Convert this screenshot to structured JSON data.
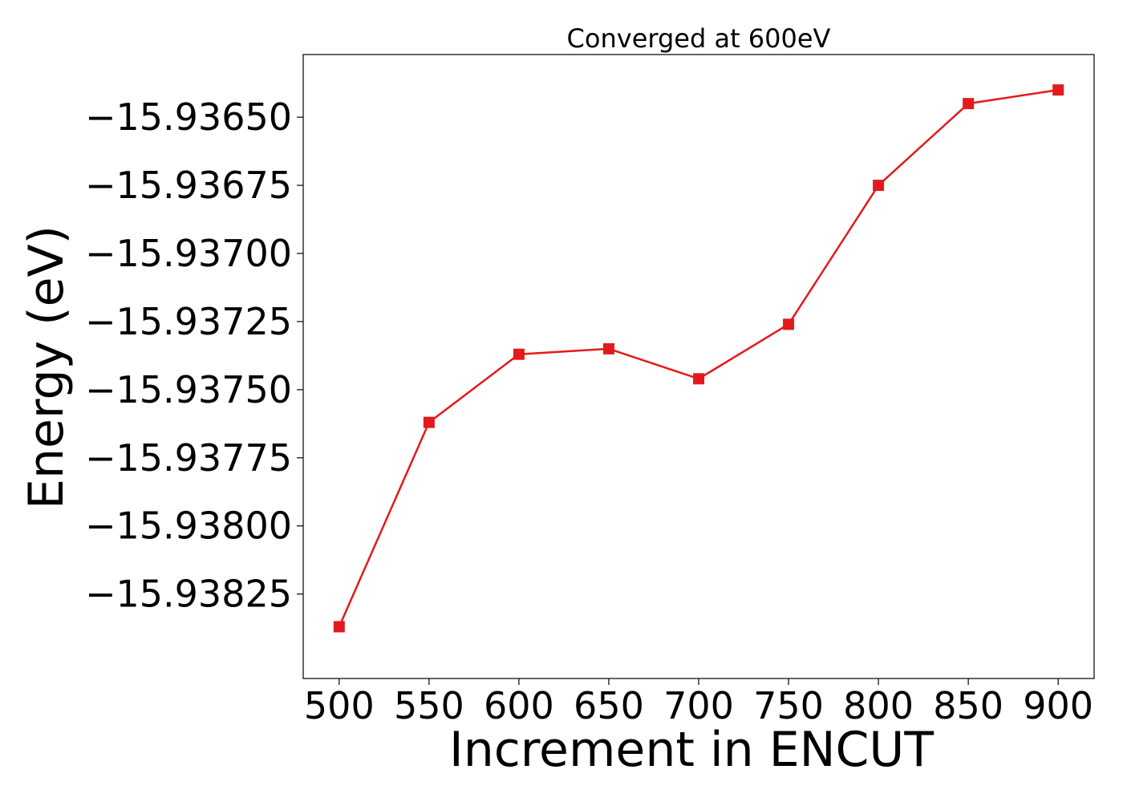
{
  "chart_data": {
    "type": "line",
    "title": "Converged at 600eV",
    "xlabel": "Increment in ENCUT",
    "ylabel": "Energy (eV)",
    "x": [
      500,
      550,
      600,
      650,
      700,
      750,
      800,
      850,
      900
    ],
    "series": [
      {
        "values": [
          -15.93837,
          -15.93762,
          -15.93737,
          -15.93735,
          -15.93746,
          -15.93726,
          -15.93675,
          -15.93645,
          -15.9364
        ],
        "color": "#e31a1c",
        "marker": "square"
      }
    ],
    "xticks": [
      500,
      550,
      600,
      650,
      700,
      750,
      800,
      850,
      900
    ],
    "xtick_labels": [
      "500",
      "550",
      "600",
      "650",
      "700",
      "750",
      "800",
      "850",
      "900"
    ],
    "yticks": [
      -15.9365,
      -15.93675,
      -15.937,
      -15.93725,
      -15.9375,
      -15.93775,
      -15.938,
      -15.93825
    ],
    "ytick_labels": [
      "−15.93650",
      "−15.93675",
      "−15.93700",
      "−15.93725",
      "−15.93750",
      "−15.93775",
      "−15.93800",
      "−15.93825"
    ],
    "xlim": [
      480,
      920
    ],
    "ylim": [
      -15.93856,
      -15.93627
    ],
    "grid": false,
    "legend": false
  }
}
